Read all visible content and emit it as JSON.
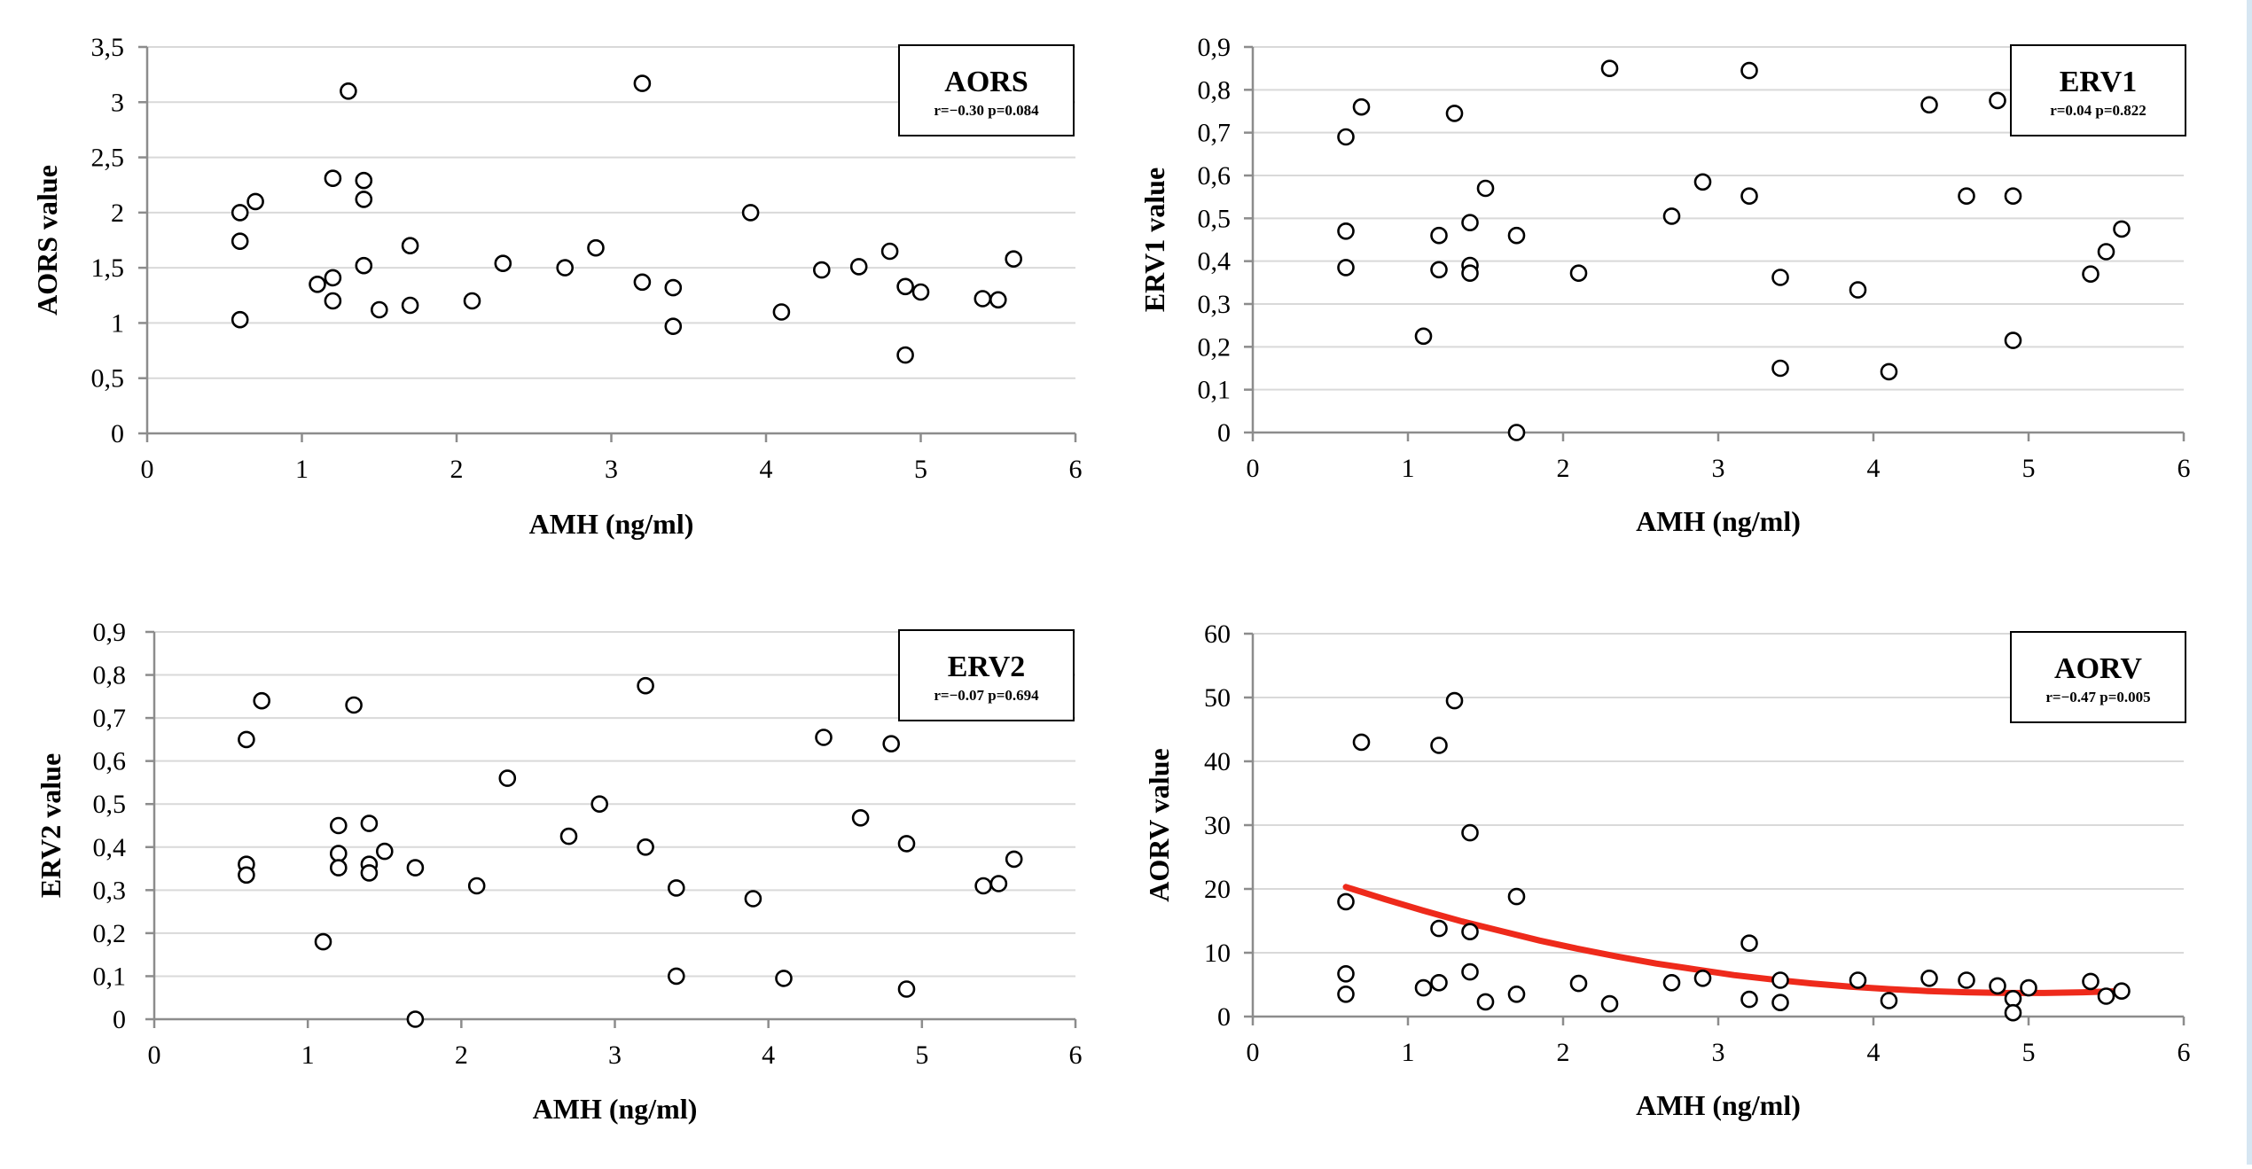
{
  "chart_data": [
    {
      "type": "scatter",
      "title": "AORS",
      "stats": "r=−0.30 p=0.084",
      "xlabel": "AMH (ng/ml)",
      "ylabel": "AORS value",
      "xlim": [
        0,
        6
      ],
      "ylim": [
        0,
        3.5
      ],
      "xticks": [
        "0",
        "1",
        "2",
        "3",
        "4",
        "5",
        "6"
      ],
      "yticks": [
        "0",
        "0,5",
        "1",
        "1,5",
        "2",
        "2,5",
        "3",
        "3,5"
      ],
      "x": [
        0.6,
        0.6,
        0.6,
        0.7,
        1.1,
        1.2,
        1.2,
        1.2,
        1.3,
        1.4,
        1.4,
        1.4,
        1.5,
        1.7,
        1.7,
        2.1,
        2.3,
        2.7,
        2.9,
        3.2,
        3.2,
        3.4,
        3.4,
        3.9,
        4.1,
        4.36,
        4.6,
        4.8,
        4.9,
        4.9,
        5.0,
        5.4,
        5.5,
        5.6
      ],
      "y": [
        2.0,
        1.74,
        1.03,
        2.1,
        1.35,
        2.31,
        1.41,
        1.2,
        3.1,
        2.29,
        2.12,
        1.52,
        1.12,
        1.7,
        1.16,
        1.2,
        1.54,
        1.5,
        1.68,
        3.17,
        1.37,
        1.32,
        0.97,
        2.0,
        1.1,
        1.48,
        1.51,
        1.65,
        1.33,
        0.71,
        1.28,
        1.22,
        1.21,
        1.58
      ]
    },
    {
      "type": "scatter",
      "title": "ERV1",
      "stats": "r=0.04 p=0.822",
      "xlabel": "AMH (ng/ml)",
      "ylabel": "ERV1 value",
      "xlim": [
        0,
        6
      ],
      "ylim": [
        0,
        0.9
      ],
      "xticks": [
        "0",
        "1",
        "2",
        "3",
        "4",
        "5",
        "6"
      ],
      "yticks": [
        "0",
        "0,1",
        "0,2",
        "0,3",
        "0,4",
        "0,5",
        "0,6",
        "0,7",
        "0,8",
        "0,9"
      ],
      "x": [
        0.6,
        0.6,
        0.6,
        0.7,
        1.1,
        1.2,
        1.2,
        1.3,
        1.4,
        1.4,
        1.4,
        1.5,
        1.7,
        1.7,
        2.1,
        2.3,
        2.7,
        2.9,
        3.2,
        3.2,
        3.4,
        3.4,
        3.9,
        4.1,
        4.36,
        4.6,
        4.8,
        4.9,
        4.9,
        5.4,
        5.5,
        5.6
      ],
      "y": [
        0.69,
        0.47,
        0.385,
        0.76,
        0.225,
        0.46,
        0.38,
        0.745,
        0.49,
        0.39,
        0.372,
        0.57,
        0.46,
        0.0,
        0.372,
        0.85,
        0.505,
        0.585,
        0.845,
        0.552,
        0.362,
        0.15,
        0.333,
        0.142,
        0.765,
        0.552,
        0.775,
        0.552,
        0.215,
        0.37,
        0.422,
        0.475
      ]
    },
    {
      "type": "scatter",
      "title": "ERV2",
      "stats": "r=−0.07 p=0.694",
      "xlabel": "AMH (ng/ml)",
      "ylabel": "ERV2 value",
      "xlim": [
        0,
        6
      ],
      "ylim": [
        0,
        0.9
      ],
      "xticks": [
        "0",
        "1",
        "2",
        "3",
        "4",
        "5",
        "6"
      ],
      "yticks": [
        "0",
        "0,1",
        "0,2",
        "0,3",
        "0,4",
        "0,5",
        "0,6",
        "0,7",
        "0,8",
        "0,9"
      ],
      "x": [
        0.6,
        0.6,
        0.6,
        0.7,
        1.1,
        1.2,
        1.2,
        1.2,
        1.3,
        1.4,
        1.4,
        1.4,
        1.5,
        1.7,
        1.7,
        2.1,
        2.3,
        2.7,
        2.9,
        3.2,
        3.2,
        3.4,
        3.4,
        3.9,
        4.1,
        4.36,
        4.6,
        4.8,
        4.9,
        4.9,
        5.4,
        5.5,
        5.6
      ],
      "y": [
        0.65,
        0.36,
        0.335,
        0.74,
        0.18,
        0.45,
        0.385,
        0.352,
        0.73,
        0.455,
        0.36,
        0.34,
        0.39,
        0.352,
        0.0,
        0.31,
        0.56,
        0.425,
        0.5,
        0.775,
        0.4,
        0.305,
        0.1,
        0.28,
        0.095,
        0.655,
        0.468,
        0.64,
        0.408,
        0.07,
        0.31,
        0.315,
        0.372
      ]
    },
    {
      "type": "scatter",
      "title": "AORV",
      "stats": "r=−0.47 p=0.005",
      "xlabel": "AMH (ng/ml)",
      "ylabel": "AORV value",
      "xlim": [
        0,
        6
      ],
      "ylim": [
        0,
        60
      ],
      "xticks": [
        "0",
        "1",
        "2",
        "3",
        "4",
        "5",
        "6"
      ],
      "yticks": [
        "0",
        "10",
        "20",
        "30",
        "40",
        "50",
        "60"
      ],
      "x": [
        0.6,
        0.6,
        0.6,
        0.7,
        1.1,
        1.2,
        1.2,
        1.2,
        1.3,
        1.4,
        1.4,
        1.4,
        1.5,
        1.7,
        1.7,
        2.1,
        2.3,
        2.7,
        2.9,
        3.2,
        3.2,
        3.4,
        3.4,
        3.9,
        4.1,
        4.36,
        4.6,
        4.8,
        4.9,
        4.9,
        5.0,
        5.4,
        5.5,
        5.6
      ],
      "y": [
        18.0,
        6.7,
        3.5,
        43.0,
        4.5,
        42.5,
        13.8,
        5.3,
        49.5,
        28.8,
        13.3,
        7.0,
        2.3,
        18.8,
        3.5,
        5.2,
        2.0,
        5.3,
        6.0,
        11.5,
        2.7,
        5.7,
        2.2,
        5.7,
        2.5,
        6.0,
        5.7,
        4.8,
        2.8,
        0.6,
        4.5,
        5.5,
        3.2,
        4.0
      ],
      "trendline": {
        "type": "polynomial",
        "x": [
          0.6,
          0.85,
          1.1,
          1.35,
          1.6,
          1.85,
          2.1,
          2.35,
          2.6,
          2.85,
          3.1,
          3.35,
          3.6,
          3.85,
          4.1,
          4.35,
          4.6,
          4.85,
          5.1,
          5.35,
          5.6
        ],
        "y": [
          20.3,
          18.4,
          16.6,
          14.9,
          13.4,
          11.9,
          10.6,
          9.4,
          8.3,
          7.4,
          6.5,
          5.8,
          5.2,
          4.7,
          4.3,
          4.0,
          3.8,
          3.7,
          3.7,
          3.8,
          4.0
        ],
        "color": "#ee2a1b"
      }
    }
  ]
}
